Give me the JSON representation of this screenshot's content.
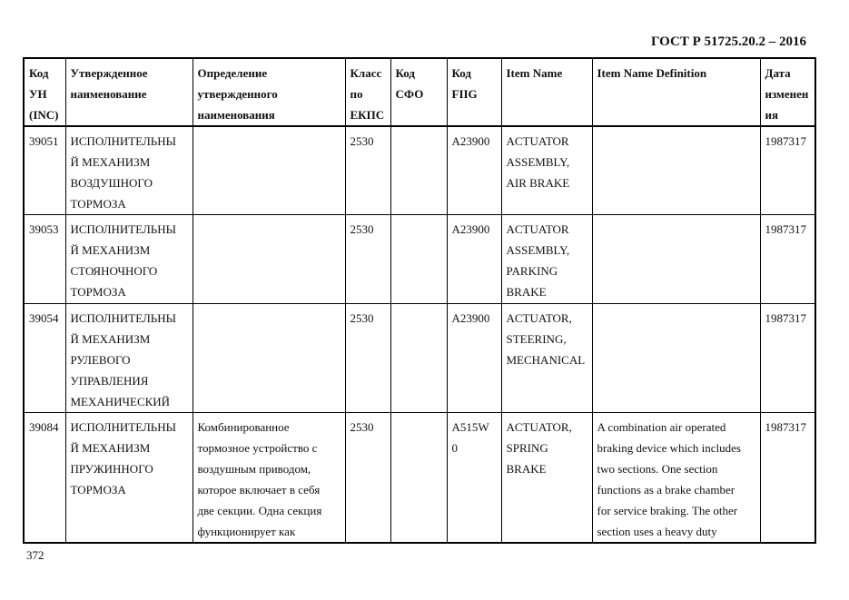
{
  "header": {
    "doc_title": "ГОСТ Р 51725.20.2 – 2016"
  },
  "footer": {
    "page_number": "372"
  },
  "table": {
    "columns": [
      "Код\nУН\n(INC)",
      "Утвержденное\nнаименование",
      "Определение\nутвержденного\nнаименования",
      "Класс\nпо\nЕКПС",
      "Код\nСФО",
      "Код\nFIIG",
      "Item Name",
      "Item Name Definition",
      "Дата\nизменен\nия"
    ],
    "rows": [
      [
        "39051",
        "ИСПОЛНИТЕЛЬНЫ\nЙ МЕХАНИЗМ\nВОЗДУШНОГО\nТОРМОЗА",
        "",
        "2530",
        "",
        "A23900",
        "ACTUATOR\nASSEMBLY,\nAIR BRAKE",
        "",
        "1987317"
      ],
      [
        "39053",
        "ИСПОЛНИТЕЛЬНЫ\nЙ МЕХАНИЗМ\nСТОЯНОЧНОГО\nТОРМОЗА",
        "",
        "2530",
        "",
        "A23900",
        "ACTUATOR\nASSEMBLY,\nPARKING\nBRAKE",
        "",
        "1987317"
      ],
      [
        "39054",
        "ИСПОЛНИТЕЛЬНЫ\nЙ МЕХАНИЗМ\nРУЛЕВОГО\nУПРАВЛЕНИЯ\nМЕХАНИЧЕСКИЙ",
        "",
        "2530",
        "",
        "A23900",
        "ACTUATOR,\nSTEERING,\nMECHANICAL",
        "",
        "1987317"
      ],
      [
        "39084",
        "ИСПОЛНИТЕЛЬНЫ\nЙ МЕХАНИЗМ\nПРУЖИННОГО\nТОРМОЗА",
        "Комбинированное\nтормозное устройство с\nвоздушным приводом,\nкоторое включает в себя\nдве секции. Одна секция\nфункционирует как",
        "2530",
        "",
        "A515W\n0",
        "ACTUATOR,\nSPRING\nBRAKE",
        "A combination air operated\nbraking device which includes\ntwo sections. One section\nfunctions as a brake chamber\nfor service braking. The other\nsection uses a heavy duty",
        "1987317"
      ]
    ]
  }
}
